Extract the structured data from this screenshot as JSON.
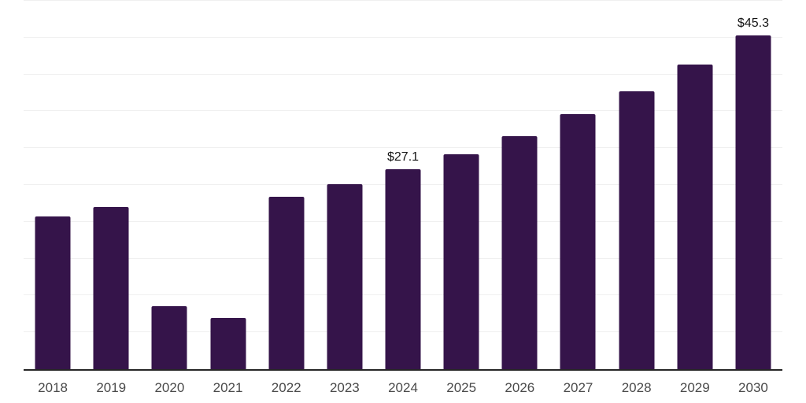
{
  "chart_data": {
    "type": "bar",
    "title": "",
    "xlabel": "",
    "ylabel": "",
    "categories": [
      "2018",
      "2019",
      "2020",
      "2021",
      "2022",
      "2023",
      "2024",
      "2025",
      "2026",
      "2027",
      "2028",
      "2029",
      "2030"
    ],
    "values": [
      20.7,
      22.0,
      8.6,
      6.9,
      23.4,
      25.1,
      27.1,
      29.2,
      31.6,
      34.6,
      37.7,
      41.3,
      45.3
    ],
    "value_labels": {
      "2024": "$27.1",
      "2030": "$45.3"
    },
    "ylim": [
      0,
      50
    ],
    "grid_step": 5,
    "grid": "horizontal",
    "legend_position": "none",
    "y_tick_labels_visible": false,
    "colors": {
      "bar": "#35144A",
      "gridline": "#f0f0f0",
      "axis_line": "#262626",
      "x_tick_label": "#4a4a4a",
      "value_label": "#141414",
      "background": "#ffffff"
    }
  }
}
